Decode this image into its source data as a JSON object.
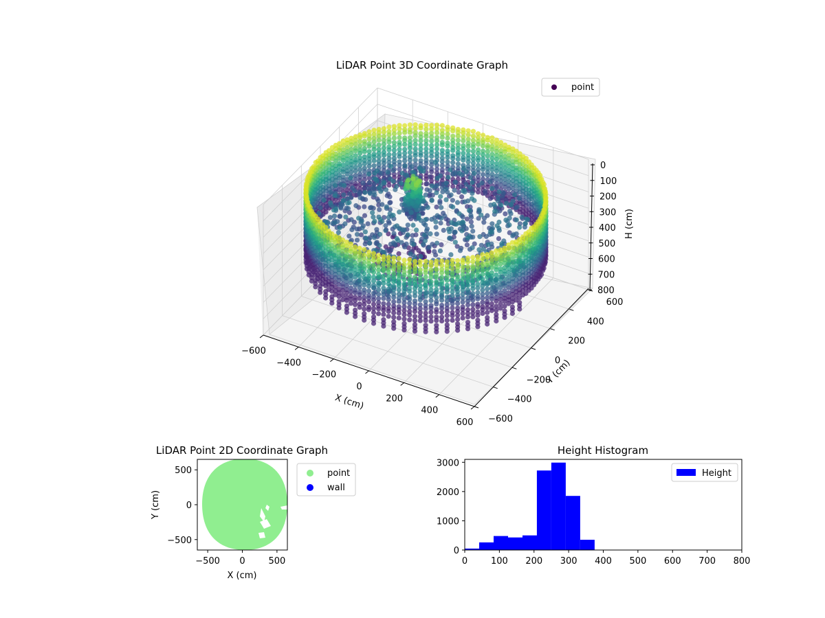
{
  "figure": {
    "background": "#ffffff"
  },
  "chart_data": [
    {
      "type": "scatter",
      "title": "LiDAR Point 3D Coordinate Graph",
      "legend": [
        "point"
      ],
      "legend_position": "top-right",
      "xlabel": "X (cm)",
      "ylabel": "Y (cm)",
      "zlabel": "H (cm)",
      "xlim": [
        -600,
        600
      ],
      "ylim": [
        -600,
        600
      ],
      "zlim": [
        0,
        800
      ],
      "z_inverted": true,
      "x_ticks": [
        "−600",
        "−400",
        "−200",
        "0",
        "200",
        "400",
        "600"
      ],
      "y_ticks": [
        "−600",
        "−400",
        "−200",
        "0",
        "200",
        "400",
        "600"
      ],
      "z_ticks": [
        "0",
        "100",
        "200",
        "300",
        "400",
        "500",
        "600",
        "700",
        "800"
      ],
      "colormap": "viridis",
      "grid": true,
      "description_of_cloud": {
        "ring_radius": 600,
        "ring_height_range": [
          70,
          450
        ],
        "floor_height_range": [
          250,
          350
        ],
        "object_xy": [
          -150,
          150
        ],
        "object_height_range": [
          120,
          550
        ]
      }
    },
    {
      "type": "scatter",
      "title": "LiDAR Point 2D Coordinate Graph",
      "xlabel": "X (cm)",
      "ylabel": "Y (cm)",
      "xlim": [
        -650,
        650
      ],
      "ylim": [
        -650,
        650
      ],
      "x_ticks": [
        "−500",
        "0",
        "500"
      ],
      "y_ticks": [
        "−500",
        "0",
        "500"
      ],
      "legend": [
        {
          "label": "point",
          "color": "#90ee90"
        },
        {
          "label": "wall",
          "color": "#0000ff"
        }
      ],
      "legend_position": "outside-right",
      "region_radius": 620
    },
    {
      "type": "bar",
      "title": "Height Histogram",
      "legend": [
        {
          "label": "Height",
          "color": "#0000ff"
        }
      ],
      "legend_position": "top-right",
      "xlim": [
        0,
        800
      ],
      "ylim": [
        0,
        3100
      ],
      "x_ticks": [
        "0",
        "100",
        "200",
        "300",
        "400",
        "500",
        "600",
        "700",
        "800"
      ],
      "y_ticks": [
        "0",
        "1000",
        "2000",
        "3000"
      ],
      "bin_edges": [
        0,
        41.7,
        83.3,
        125,
        166.7,
        208.3,
        250,
        291.7,
        333.3,
        375
      ],
      "values": [
        50,
        260,
        480,
        430,
        500,
        2720,
        2990,
        1850,
        350
      ],
      "bar_color": "#0000ff"
    }
  ]
}
